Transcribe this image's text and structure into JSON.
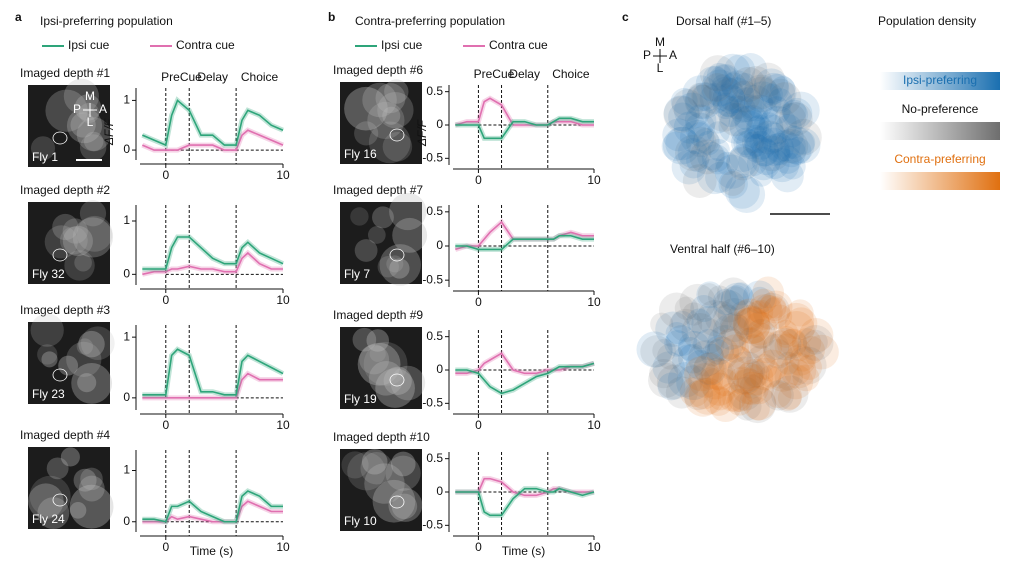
{
  "panels": [
    {
      "letter": "a",
      "title": "Ipsi-preferring population",
      "title_color": "#2b7fc0"
    },
    {
      "letter": "b",
      "title": "Contra-preferring population",
      "title_color": "#e0701a"
    }
  ],
  "image_compass": [
    "M",
    "P",
    "A",
    "L"
  ],
  "chart_data": [
    {
      "type": "line",
      "depth_label": "Imaged depth #1",
      "fly": "Fly 1",
      "epochs": [
        "PreCue",
        "Delay",
        "Choice"
      ],
      "ylabel": "ΔF/F",
      "x": [
        -2,
        -1,
        0,
        0.5,
        1,
        2,
        3,
        4,
        5,
        6,
        6.5,
        7,
        8,
        9,
        10
      ],
      "series": [
        {
          "name": "Ipsi cue",
          "color": "#2ea57a",
          "values": [
            0.3,
            0.2,
            0.1,
            0.7,
            1.0,
            0.8,
            0.3,
            0.3,
            0.1,
            0.1,
            0.6,
            0.8,
            0.7,
            0.5,
            0.4
          ]
        },
        {
          "name": "Contra cue",
          "color": "#e070b0",
          "values": [
            0.1,
            0.0,
            0.0,
            0.0,
            0.0,
            0.1,
            0.1,
            0.1,
            0.0,
            0.0,
            0.3,
            0.4,
            0.3,
            0.2,
            0.1
          ]
        }
      ],
      "xlim": [
        -2.2,
        10
      ],
      "ylim": [
        -0.2,
        1.25
      ],
      "xticks": [
        0,
        10
      ],
      "yticks": [
        0,
        1
      ],
      "vlines": [
        0,
        2,
        6
      ],
      "baseline": 0
    },
    {
      "type": "line",
      "depth_label": "Imaged depth #2",
      "fly": "Fly 32",
      "x": [
        -2,
        -1,
        0,
        0.5,
        1,
        2,
        3,
        4,
        5,
        6,
        6.5,
        7,
        8,
        9,
        10
      ],
      "series": [
        {
          "name": "Ipsi cue",
          "color": "#2ea57a",
          "values": [
            0.1,
            0.1,
            0.1,
            0.5,
            0.7,
            0.7,
            0.5,
            0.3,
            0.2,
            0.2,
            0.5,
            0.6,
            0.4,
            0.3,
            0.2
          ]
        },
        {
          "name": "Contra cue",
          "color": "#e070b0",
          "values": [
            0,
            0.05,
            0.05,
            0.1,
            0.1,
            0.15,
            0.1,
            0.1,
            0.05,
            0.05,
            0.3,
            0.4,
            0.2,
            0.1,
            0.1
          ]
        }
      ],
      "xlim": [
        -2.2,
        10
      ],
      "ylim": [
        -0.2,
        1.3
      ],
      "xticks": [
        0,
        10
      ],
      "yticks": [
        0,
        1
      ],
      "vlines": [
        0,
        2,
        6
      ],
      "baseline": 0
    },
    {
      "type": "line",
      "depth_label": "Imaged depth #3",
      "fly": "Fly 23",
      "x": [
        -2,
        -1,
        0,
        0.5,
        1,
        2,
        3,
        4,
        5,
        6,
        6.5,
        7,
        8,
        9,
        10
      ],
      "series": [
        {
          "name": "Ipsi cue",
          "color": "#2ea57a",
          "values": [
            0.05,
            0.05,
            0.05,
            0.7,
            0.8,
            0.7,
            0.1,
            0.1,
            0.05,
            0.05,
            0.6,
            0.7,
            0.6,
            0.5,
            0.4
          ]
        },
        {
          "name": "Contra cue",
          "color": "#e070b0",
          "values": [
            0,
            0,
            0,
            0,
            0,
            0,
            0,
            0,
            0,
            0,
            0.3,
            0.4,
            0.3,
            0.3,
            0.3
          ]
        }
      ],
      "xlim": [
        -2.2,
        10
      ],
      "ylim": [
        -0.2,
        1.2
      ],
      "xticks": [
        0,
        10
      ],
      "yticks": [
        0,
        1
      ],
      "vlines": [
        0,
        2,
        6
      ],
      "baseline": 0
    },
    {
      "type": "line",
      "depth_label": "Imaged depth #4",
      "fly": "Fly 24",
      "xlabel": "Time (s)",
      "x": [
        -2,
        -1,
        0,
        0.5,
        1,
        2,
        3,
        4,
        5,
        6,
        6.5,
        7,
        8,
        9,
        10
      ],
      "series": [
        {
          "name": "Ipsi cue",
          "color": "#2ea57a",
          "values": [
            0.05,
            0.05,
            0,
            0.3,
            0.3,
            0.4,
            0.2,
            0.1,
            0,
            0,
            0.5,
            0.6,
            0.5,
            0.3,
            0.3
          ]
        },
        {
          "name": "Contra cue",
          "color": "#e070b0",
          "values": [
            0,
            0,
            0,
            0.1,
            0.05,
            0.1,
            0.05,
            0,
            0,
            0,
            0.3,
            0.4,
            0.3,
            0.2,
            0.2
          ]
        }
      ],
      "xlim": [
        -2.2,
        10
      ],
      "ylim": [
        -0.2,
        1.4
      ],
      "xticks": [
        0,
        10
      ],
      "yticks": [
        0,
        1
      ],
      "vlines": [
        0,
        2,
        6
      ],
      "baseline": 0
    },
    {
      "type": "line",
      "depth_label": "Imaged depth #6",
      "fly": "Fly 16",
      "epochs": [
        "PreCue",
        "Delay",
        "Choice"
      ],
      "ylabel": "ΔF/F",
      "x": [
        -2,
        -1,
        0,
        0.5,
        1,
        2,
        3,
        4,
        5,
        6,
        6.5,
        7,
        8,
        9,
        10
      ],
      "series": [
        {
          "name": "Ipsi cue",
          "color": "#2ea57a",
          "values": [
            0,
            0,
            0,
            -0.2,
            -0.2,
            -0.2,
            0.05,
            0.05,
            0,
            0,
            0.05,
            0.1,
            0.1,
            0.05,
            0.05
          ]
        },
        {
          "name": "Contra cue",
          "color": "#e070b0",
          "values": [
            0,
            0.05,
            0.05,
            0.35,
            0.4,
            0.3,
            0,
            0,
            0,
            0,
            0.05,
            0.05,
            0.05,
            0,
            0
          ]
        }
      ],
      "xlim": [
        -2.2,
        10
      ],
      "ylim": [
        -0.6,
        0.6
      ],
      "xticks": [
        0,
        10
      ],
      "yticks": [
        -0.5,
        0,
        0.5
      ],
      "vlines": [
        0,
        2,
        6
      ],
      "baseline": 0
    },
    {
      "type": "line",
      "depth_label": "Imaged depth #7",
      "fly": "Fly 7",
      "x": [
        -2,
        -1,
        0,
        0.5,
        1,
        2,
        3,
        4,
        5,
        6,
        6.5,
        7,
        8,
        9,
        10
      ],
      "series": [
        {
          "name": "Ipsi cue",
          "color": "#2ea57a",
          "values": [
            0,
            0,
            -0.05,
            -0.05,
            -0.05,
            -0.05,
            0.1,
            0.1,
            0.1,
            0.1,
            0.1,
            0.15,
            0.15,
            0.1,
            0.1
          ]
        },
        {
          "name": "Contra cue",
          "color": "#e070b0",
          "values": [
            -0.05,
            0,
            0,
            0.1,
            0.2,
            0.35,
            0.1,
            0.1,
            0.1,
            0.1,
            0.1,
            0.15,
            0.2,
            0.15,
            0.15
          ]
        }
      ],
      "xlim": [
        -2.2,
        10
      ],
      "ylim": [
        -0.6,
        0.6
      ],
      "xticks": [
        0,
        10
      ],
      "yticks": [
        -0.5,
        0,
        0.5
      ],
      "vlines": [
        0,
        2,
        6
      ],
      "baseline": 0
    },
    {
      "type": "line",
      "depth_label": "Imaged depth #9",
      "fly": "Fly 19",
      "x": [
        -2,
        -1,
        0,
        0.5,
        1,
        2,
        3,
        4,
        5,
        6,
        6.5,
        7,
        8,
        9,
        10
      ],
      "series": [
        {
          "name": "Ipsi cue",
          "color": "#2ea57a",
          "values": [
            0,
            0,
            -0.05,
            -0.15,
            -0.25,
            -0.35,
            -0.3,
            -0.2,
            -0.1,
            -0.05,
            0,
            0.05,
            0.05,
            0.05,
            0.1
          ]
        },
        {
          "name": "Contra cue",
          "color": "#e070b0",
          "values": [
            -0.05,
            -0.05,
            0,
            0.1,
            0.15,
            0.25,
            0,
            -0.05,
            -0.05,
            0,
            0,
            0,
            0.05,
            0.05,
            0.1
          ]
        }
      ],
      "xlim": [
        -2.2,
        10
      ],
      "ylim": [
        -0.6,
        0.6
      ],
      "xticks": [
        0,
        10
      ],
      "yticks": [
        -0.5,
        0,
        0.5
      ],
      "vlines": [
        0,
        2,
        6
      ],
      "baseline": 0
    },
    {
      "type": "line",
      "depth_label": "Imaged depth #10",
      "fly": "Fly 10",
      "xlabel": "Time (s)",
      "x": [
        -2,
        -1,
        0,
        0.5,
        1,
        2,
        3,
        4,
        5,
        6,
        6.5,
        7,
        8,
        9,
        10
      ],
      "series": [
        {
          "name": "Ipsi cue",
          "color": "#2ea57a",
          "values": [
            0,
            0,
            0,
            -0.3,
            -0.35,
            -0.35,
            -0.1,
            0.05,
            0.05,
            0,
            0,
            0.05,
            0,
            -0.05,
            0
          ]
        },
        {
          "name": "Contra cue",
          "color": "#e070b0",
          "values": [
            0,
            0,
            0,
            0.2,
            0.2,
            0.15,
            0,
            -0.05,
            -0.05,
            0,
            0.05,
            0.05,
            0,
            0,
            0
          ]
        }
      ],
      "xlim": [
        -2.2,
        10
      ],
      "ylim": [
        -0.6,
        0.6
      ],
      "xticks": [
        0,
        10
      ],
      "yticks": [
        -0.5,
        0,
        0.5
      ],
      "vlines": [
        0,
        2,
        6
      ],
      "baseline": 0
    }
  ],
  "density": {
    "letter": "c",
    "dorsal_title": "Dorsal half (#1–5)",
    "ventral_title": "Ventral half (#6–10)",
    "legend_title": "Population density",
    "legend": [
      {
        "name": "Ipsi-preferring",
        "color": "#1a6fb0"
      },
      {
        "name": "No-preference",
        "color": "#6e6e6e"
      },
      {
        "name": "Contra-preferring",
        "color": "#e07010"
      }
    ],
    "compass": [
      "M",
      "P",
      "A",
      "L"
    ]
  }
}
